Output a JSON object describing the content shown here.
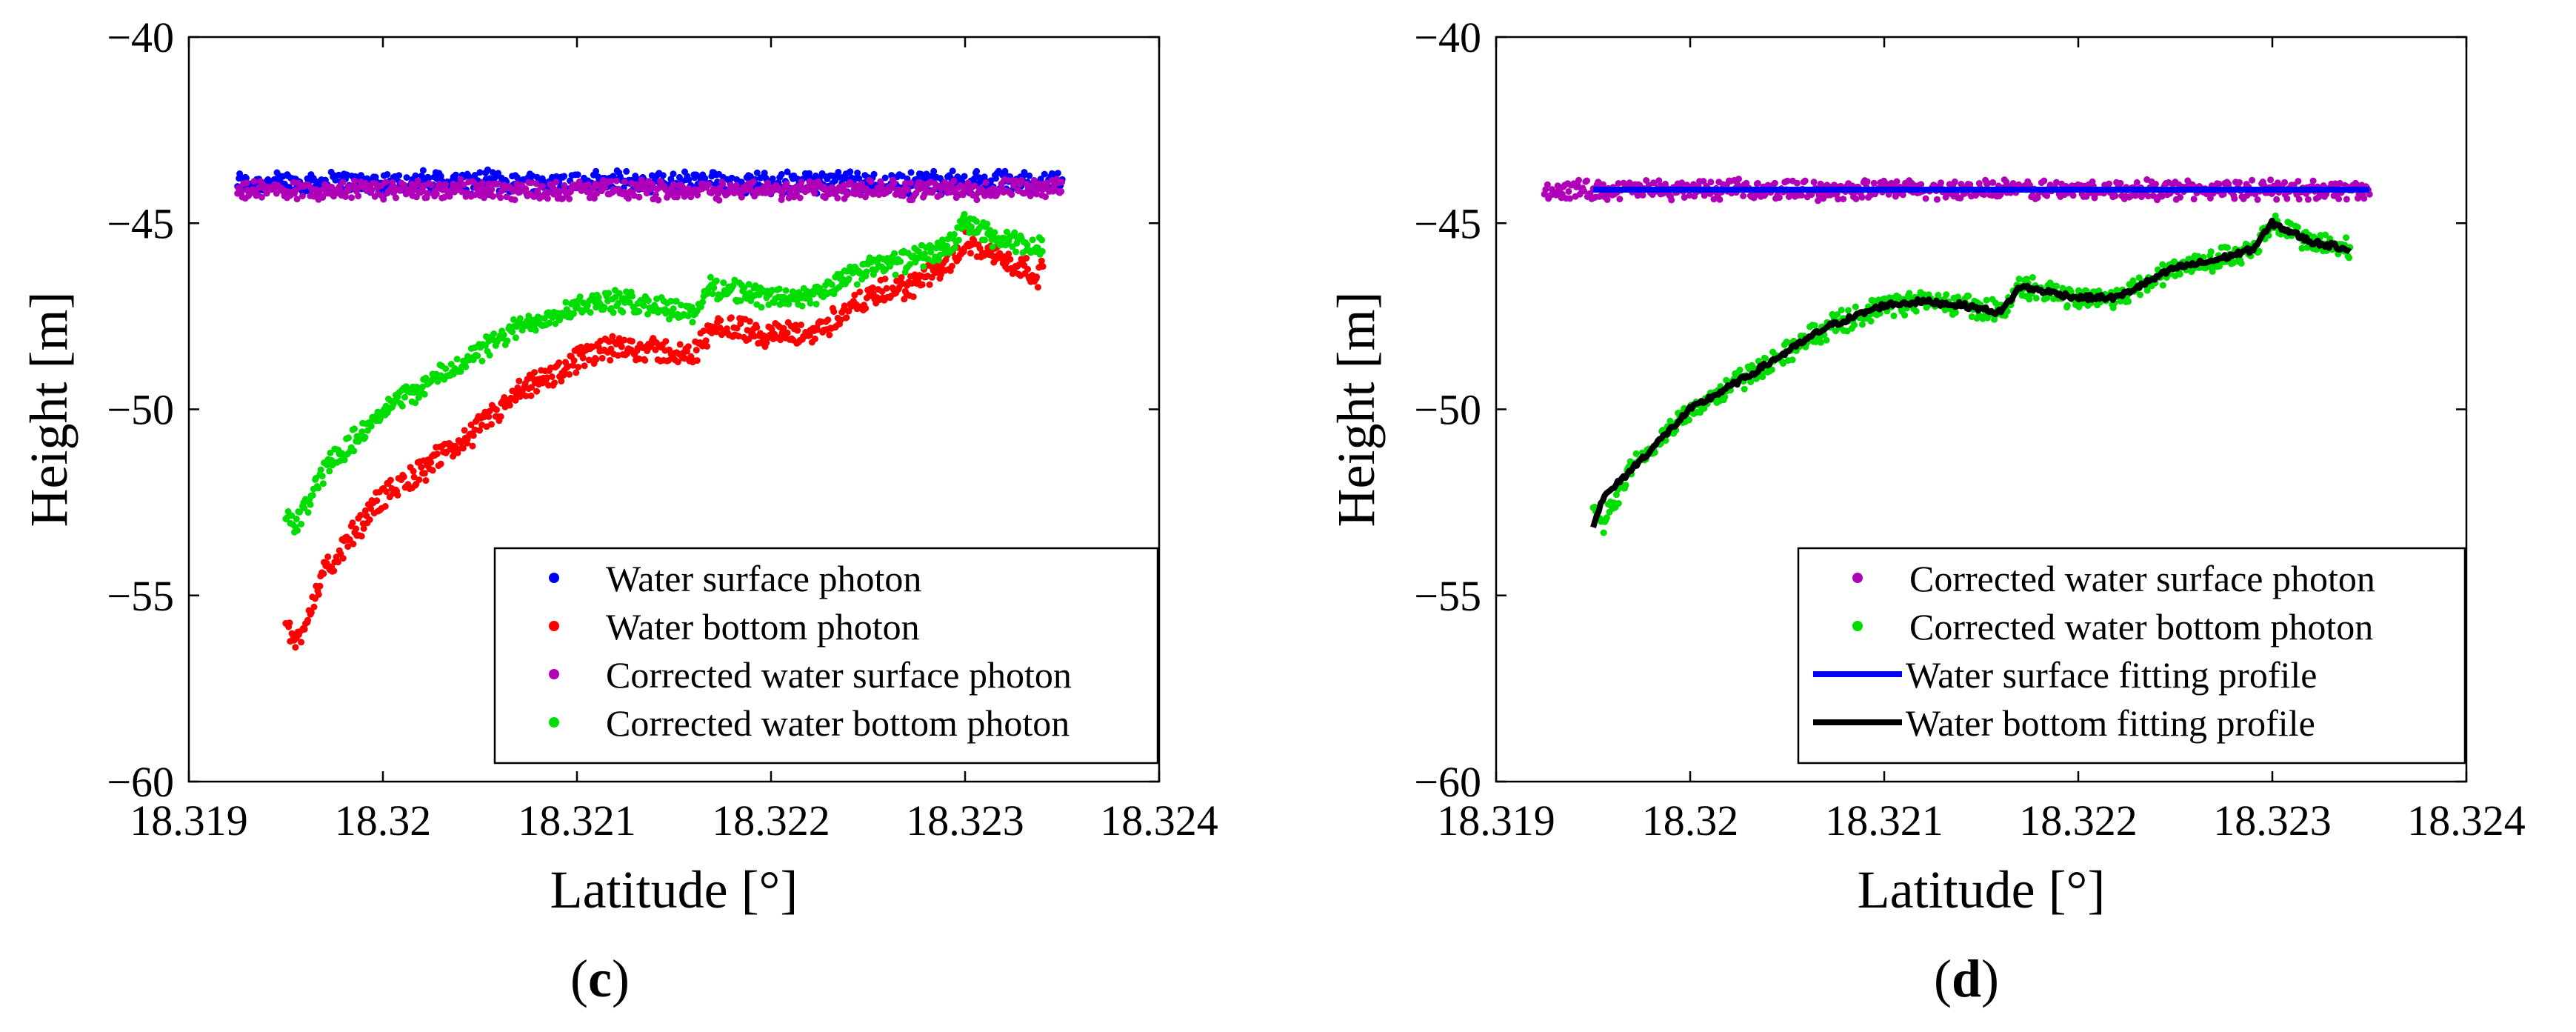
{
  "chart_data": [
    {
      "type": "scatter",
      "panel_label": "c",
      "xlabel": "Latitude [°]",
      "ylabel": "Height [m]",
      "xlim": [
        18.319,
        18.324
      ],
      "ylim": [
        -60,
        -40
      ],
      "xticks": [
        18.319,
        18.32,
        18.321,
        18.322,
        18.323,
        18.324
      ],
      "xtick_labels": [
        "18.319",
        "18.32",
        "18.321",
        "18.322",
        "18.323",
        "18.324"
      ],
      "yticks": [
        -60,
        -55,
        -50,
        -45,
        -40
      ],
      "ytick_labels": [
        "−60",
        "−55",
        "−50",
        "−45",
        "−40"
      ],
      "legend_position": "bottom-right",
      "series": [
        {
          "name": "Water surface photon",
          "kind": "points",
          "color": "#0000ff",
          "x": [
            18.31925,
            18.3235
          ],
          "y": [
            -43.9,
            -43.9
          ],
          "spread": 0.35
        },
        {
          "name": "Water bottom photon",
          "kind": "points",
          "color": "#ff0000",
          "x": [
            18.3195,
            18.31955,
            18.3197,
            18.32,
            18.3203,
            18.3207,
            18.321,
            18.3212,
            18.3214,
            18.3216,
            18.3217,
            18.322,
            18.3222,
            18.3225,
            18.3227,
            18.3229,
            18.323,
            18.3232,
            18.3234
          ],
          "y": [
            -55.8,
            -56.3,
            -54.4,
            -52.3,
            -51.3,
            -49.6,
            -48.7,
            -48.3,
            -48.4,
            -48.6,
            -47.7,
            -48.0,
            -48.0,
            -47.0,
            -46.7,
            -46.2,
            -45.4,
            -46.0,
            -46.4
          ],
          "spread": 0.4
        },
        {
          "name": "Corrected water surface photon",
          "kind": "points",
          "color": "#b000b8",
          "x": [
            18.31925,
            18.3235
          ],
          "y": [
            -44.1,
            -44.1
          ],
          "spread": 0.3
        },
        {
          "name": "Corrected water bottom photon",
          "kind": "points",
          "color": "#00dd00",
          "x": [
            18.3195,
            18.31955,
            18.3197,
            18.32,
            18.3203,
            18.3207,
            18.321,
            18.3212,
            18.3214,
            18.3216,
            18.3217,
            18.322,
            18.3222,
            18.3225,
            18.3227,
            18.3229,
            18.323,
            18.3232,
            18.3234
          ],
          "y": [
            -52.8,
            -53.1,
            -51.6,
            -50.0,
            -49.1,
            -47.8,
            -47.2,
            -47.1,
            -47.2,
            -47.4,
            -46.7,
            -47.0,
            -47.0,
            -46.2,
            -46.0,
            -45.7,
            -45.0,
            -45.5,
            -45.7
          ],
          "spread": 0.35
        }
      ]
    },
    {
      "type": "scatter",
      "panel_label": "d",
      "xlabel": "Latitude [°]",
      "ylabel": "Height [m]",
      "xlim": [
        18.319,
        18.324
      ],
      "ylim": [
        -60,
        -40
      ],
      "xticks": [
        18.319,
        18.32,
        18.321,
        18.322,
        18.323,
        18.324
      ],
      "xtick_labels": [
        "18.319",
        "18.32",
        "18.321",
        "18.322",
        "18.323",
        "18.324"
      ],
      "yticks": [
        -60,
        -55,
        -50,
        -45,
        -40
      ],
      "ytick_labels": [
        "−60",
        "−55",
        "−50",
        "−45",
        "−40"
      ],
      "legend_position": "bottom-right",
      "series": [
        {
          "name": "Corrected water surface photon",
          "kind": "points",
          "color": "#b000b8",
          "x": [
            18.31925,
            18.3235
          ],
          "y": [
            -44.1,
            -44.1
          ],
          "spread": 0.3
        },
        {
          "name": "Corrected water bottom photon",
          "kind": "points",
          "color": "#00dd00",
          "x": [
            18.3195,
            18.31955,
            18.3197,
            18.32,
            18.3203,
            18.3207,
            18.321,
            18.3212,
            18.3214,
            18.3216,
            18.3217,
            18.322,
            18.3222,
            18.3225,
            18.3227,
            18.3229,
            18.323,
            18.3232,
            18.3234
          ],
          "y": [
            -52.8,
            -53.1,
            -51.6,
            -50.0,
            -49.1,
            -47.8,
            -47.2,
            -47.1,
            -47.2,
            -47.4,
            -46.7,
            -47.0,
            -47.0,
            -46.2,
            -46.0,
            -45.7,
            -45.0,
            -45.5,
            -45.7
          ],
          "spread": 0.35
        },
        {
          "name": "Water surface fitting profile",
          "kind": "line",
          "color": "#0000ff",
          "x": [
            18.3195,
            18.3235
          ],
          "y": [
            -44.1,
            -44.1
          ]
        },
        {
          "name": "Water bottom fitting profile",
          "kind": "line",
          "color": "#000000",
          "x": [
            18.3195,
            18.31955,
            18.3197,
            18.32,
            18.3203,
            18.3207,
            18.321,
            18.3212,
            18.3214,
            18.3216,
            18.3217,
            18.322,
            18.3222,
            18.3225,
            18.3227,
            18.3229,
            18.323,
            18.3232,
            18.3234
          ],
          "y": [
            -53.1,
            -52.4,
            -51.6,
            -50.0,
            -49.1,
            -47.8,
            -47.2,
            -47.1,
            -47.2,
            -47.4,
            -46.7,
            -47.0,
            -47.0,
            -46.2,
            -46.0,
            -45.7,
            -45.0,
            -45.5,
            -45.7
          ]
        }
      ]
    }
  ]
}
